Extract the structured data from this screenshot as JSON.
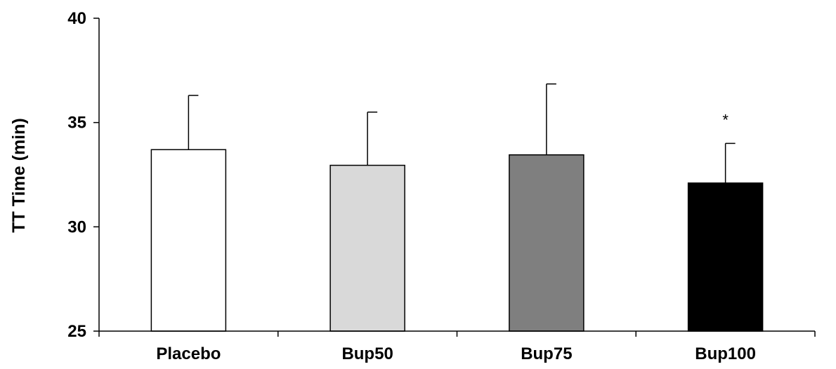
{
  "chart_data": {
    "type": "bar",
    "title": "",
    "xlabel": "",
    "ylabel": "TT Time (min)",
    "ylim": [
      25,
      40
    ],
    "yticks": [
      25,
      30,
      35,
      40
    ],
    "categories": [
      "Placebo",
      "Bup50",
      "Bup75",
      "Bup100"
    ],
    "values": [
      33.7,
      32.95,
      33.45,
      32.1
    ],
    "error_upper": [
      2.6,
      2.55,
      3.4,
      1.9
    ],
    "annotations": [
      "",
      "",
      "",
      "*"
    ],
    "grid": false,
    "legend": "none",
    "colors": [
      "#ffffff",
      "#d9d9d9",
      "#7f7f7f",
      "#000000"
    ],
    "axis_color": "#000000"
  }
}
